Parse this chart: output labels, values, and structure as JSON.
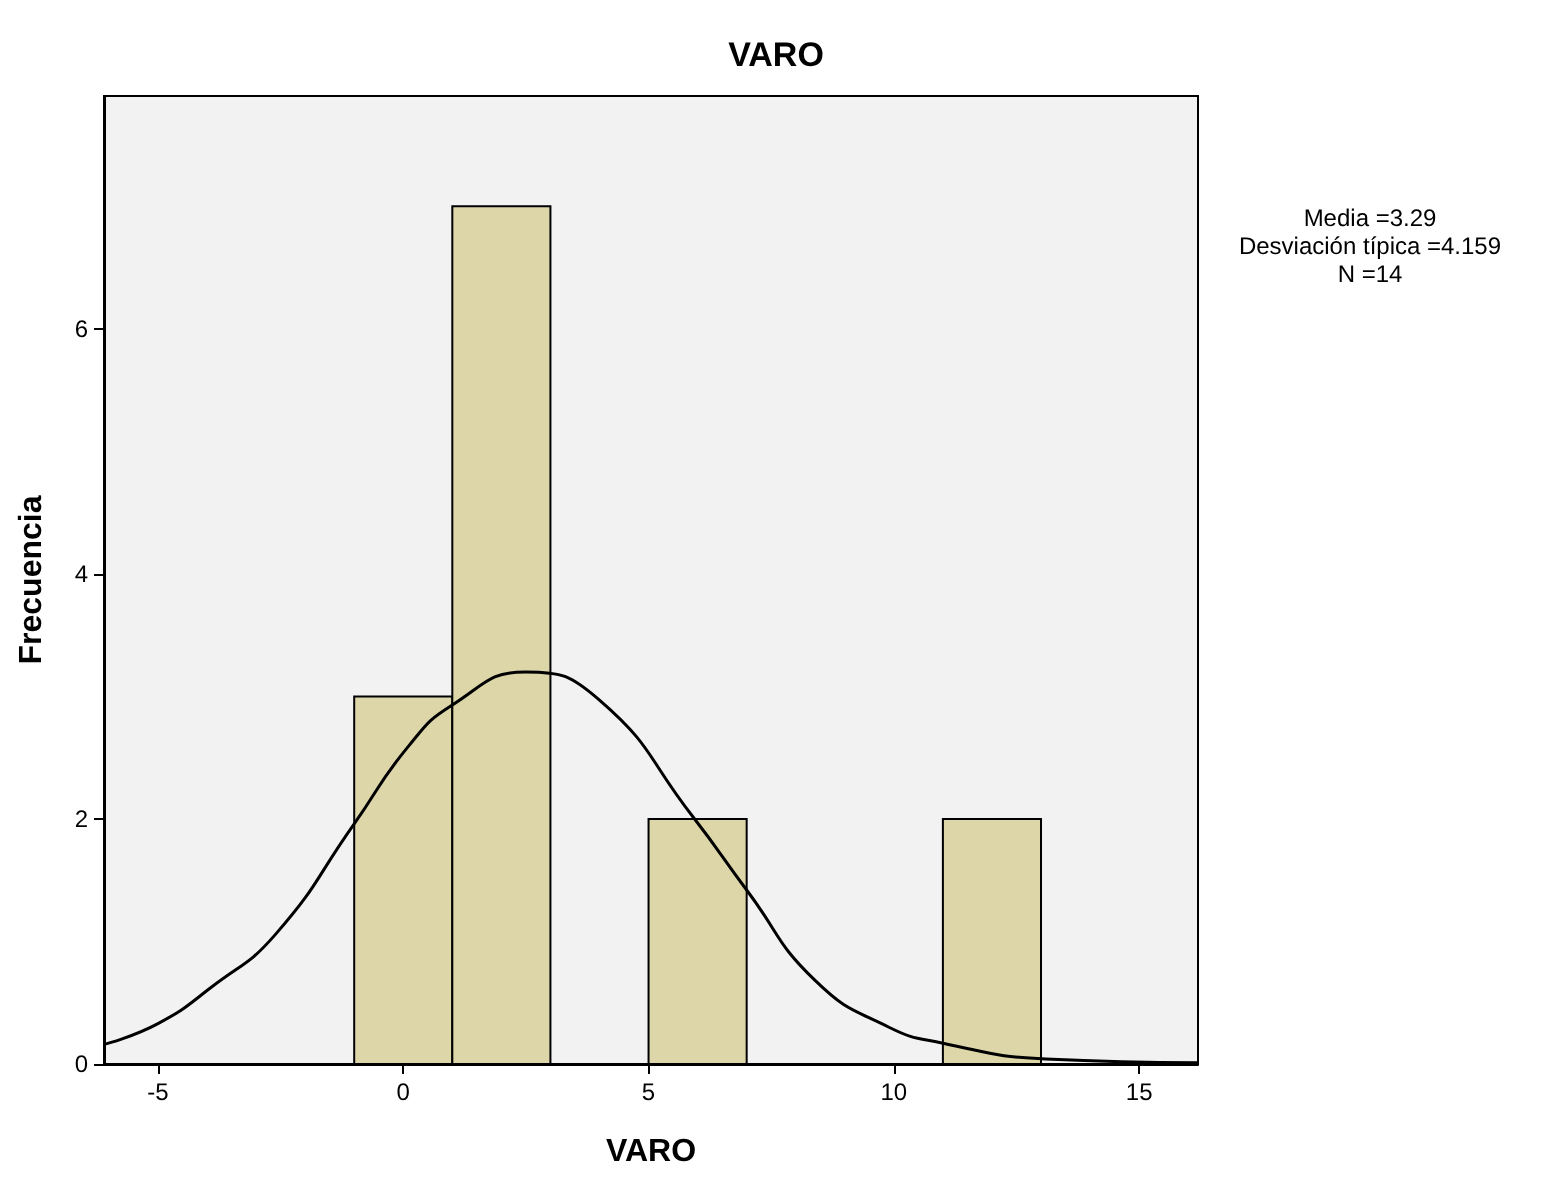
{
  "chart_data": {
    "type": "histogram",
    "title": "VARO",
    "xlabel": "VARO",
    "ylabel": "Frecuencia",
    "annotations": [
      "Media =3.29",
      "Desviación típica =4.159",
      "N =14"
    ],
    "bins": [
      -1,
      1,
      3,
      5,
      7,
      9,
      11,
      13
    ],
    "values": [
      3,
      7,
      0,
      2,
      0,
      0,
      2
    ],
    "color": "#dcd6a8",
    "series": [
      {
        "type": "line",
        "color": "#000000",
        "marker": "none",
        "x": [
          -6.1,
          -5,
          -3.9,
          -2.6,
          -1,
          0.1,
          1,
          2.5,
          4,
          5.9,
          7,
          8.4,
          9.9,
          11,
          13.1,
          16.2
        ],
        "values": [
          0.16,
          0.33,
          0.63,
          1.06,
          1.96,
          2.59,
          2.93,
          3.2,
          2.97,
          2.02,
          1.42,
          0.68,
          0.3,
          0.17,
          0.04,
          0.01
        ]
      }
    ],
    "xlim": [
      -6.1,
      16.2
    ],
    "xticks": [
      -5,
      0,
      5,
      10,
      15
    ],
    "ylim": [
      0,
      7.9
    ],
    "yticks": [
      0,
      2,
      4,
      6
    ],
    "grid": false
  }
}
